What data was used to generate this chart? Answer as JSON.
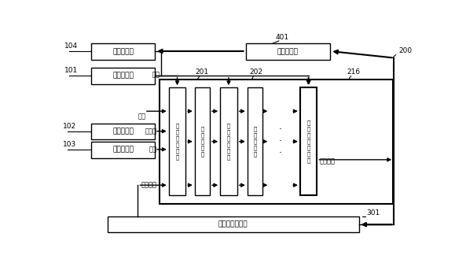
{
  "bg_color": "#ffffff",
  "fig_width": 5.79,
  "fig_height": 3.43,
  "dpi": 100,
  "labels": {
    "reg4": "第四存储器",
    "reg1": "第一存储器",
    "reg2": "第二存储器",
    "reg3": "第三存储器",
    "mod_block": "模约减模块",
    "fifo": "先进先出寄存器",
    "proc1": "第\n一\n处\n理\n单\n元",
    "array1": "第\n一\n级\n阵\n列",
    "proc2": "第\n二\n处\n理\n单\n元",
    "array2": "第\n二\n级\n阵\n列",
    "proc16": "第\n十\n六\n处\n理\n单\n元"
  },
  "ref_nums": {
    "n104": "104",
    "n101": "101",
    "n102": "102",
    "n103": "103",
    "n401": "401",
    "n200": "200",
    "n201": "201",
    "n202": "202",
    "n216": "216",
    "n301": "301"
  },
  "annotations": {
    "multiplier": "乘数",
    "multiplicand": "被乘数",
    "modulus": "模数",
    "start": "开始",
    "intermediate": "中间结果",
    "calc_result": "计算结果"
  }
}
